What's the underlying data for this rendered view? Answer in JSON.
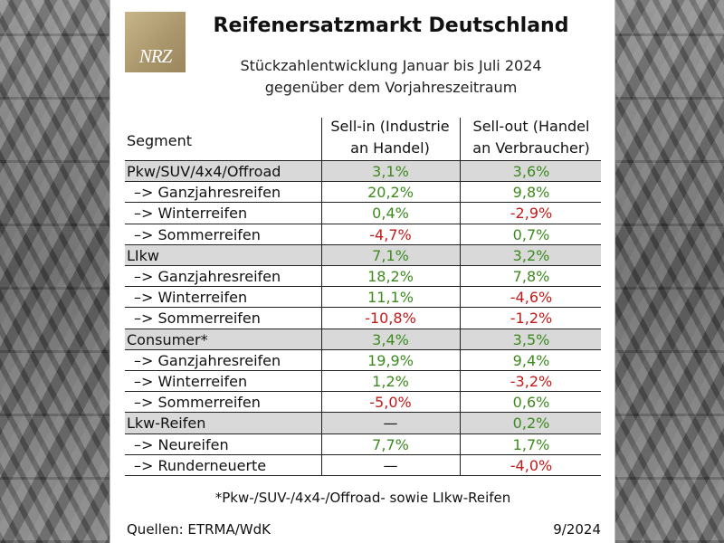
{
  "logo": {
    "text": "NRZ"
  },
  "title": "Reifenersatzmarkt Deutschland",
  "subtitle_line1": "Stückzahlentwicklung Januar bis Juli 2024",
  "subtitle_line2": "gegenüber dem Vorjahreszeitraum",
  "colors": {
    "positive": "#3d8a1f",
    "negative": "#c21a1a",
    "neutral": "#111111",
    "shaded_row": "#d9d9d9",
    "logo_bg": "#b5a277"
  },
  "chart_data": {
    "type": "table",
    "columns": {
      "segment": "Segment",
      "sell_in_line1": "Sell-in (Industrie",
      "sell_in_line2": "an Handel)",
      "sell_out_line1": "Sell-out (Handel",
      "sell_out_line2": "an Verbraucher)"
    },
    "rows": [
      {
        "segment": "Pkw/SUV/4x4/Offroad",
        "sub": false,
        "shaded": true,
        "sell_in": "3,1%",
        "sell_out": "3,6%"
      },
      {
        "segment": "–> Ganzjahresreifen",
        "sub": true,
        "shaded": false,
        "sell_in": "20,2%",
        "sell_out": "9,8%"
      },
      {
        "segment": "–> Winterreifen",
        "sub": true,
        "shaded": false,
        "sell_in": "0,4%",
        "sell_out": "-2,9%"
      },
      {
        "segment": "–> Sommerreifen",
        "sub": true,
        "shaded": false,
        "sell_in": "-4,7%",
        "sell_out": "0,7%"
      },
      {
        "segment": "LIkw",
        "sub": false,
        "shaded": true,
        "sell_in": "7,1%",
        "sell_out": "3,2%"
      },
      {
        "segment": "–> Ganzjahresreifen",
        "sub": true,
        "shaded": false,
        "sell_in": "18,2%",
        "sell_out": "7,8%"
      },
      {
        "segment": "–> Winterreifen",
        "sub": true,
        "shaded": false,
        "sell_in": "11,1%",
        "sell_out": "-4,6%"
      },
      {
        "segment": "–> Sommerreifen",
        "sub": true,
        "shaded": false,
        "sell_in": "-10,8%",
        "sell_out": "-1,2%"
      },
      {
        "segment": "Consumer*",
        "sub": false,
        "shaded": true,
        "sell_in": "3,4%",
        "sell_out": "3,5%"
      },
      {
        "segment": "–> Ganzjahresreifen",
        "sub": true,
        "shaded": false,
        "sell_in": "19,9%",
        "sell_out": "9,4%"
      },
      {
        "segment": "–> Winterreifen",
        "sub": true,
        "shaded": false,
        "sell_in": "1,2%",
        "sell_out": "-3,2%"
      },
      {
        "segment": "–> Sommerreifen",
        "sub": true,
        "shaded": false,
        "sell_in": "-5,0%",
        "sell_out": "0,6%"
      },
      {
        "segment": "Lkw-Reifen",
        "sub": false,
        "shaded": true,
        "sell_in": "—",
        "sell_out": "0,2%"
      },
      {
        "segment": "–> Neureifen",
        "sub": true,
        "shaded": false,
        "sell_in": "7,7%",
        "sell_out": "1,7%"
      },
      {
        "segment": "–> Runderneuerte",
        "sub": true,
        "shaded": false,
        "sell_in": "—",
        "sell_out": "-4,0%"
      }
    ]
  },
  "footnote": "*Pkw-/SUV-/4x4-/Offroad- sowie LIkw-Reifen",
  "source": "Quellen: ETRMA/WdK",
  "date": "9/2024"
}
